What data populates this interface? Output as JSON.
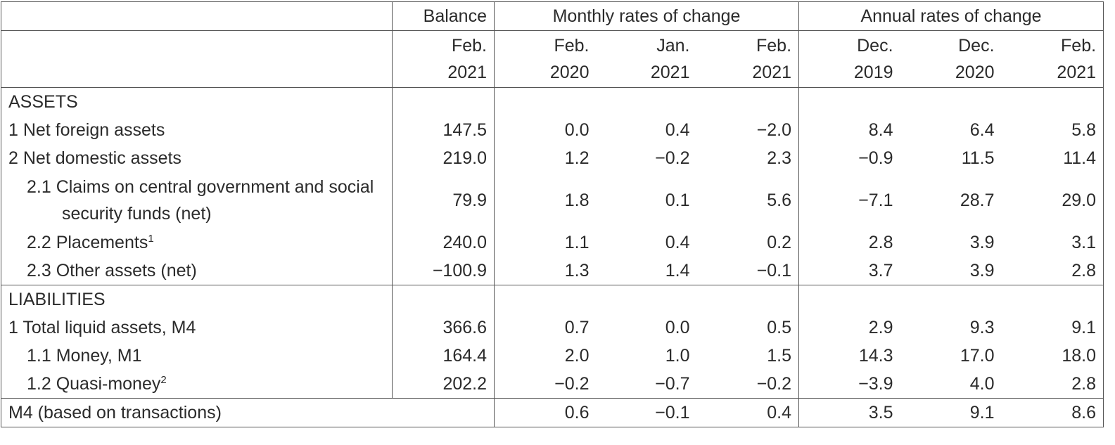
{
  "header": {
    "balance": "Balance",
    "monthly": "Monthly rates of change",
    "annual": "Annual rates of change",
    "periods": [
      {
        "m": "Feb.",
        "y": "2021"
      },
      {
        "m": "Feb.",
        "y": "2020"
      },
      {
        "m": "Jan.",
        "y": "2021"
      },
      {
        "m": "Feb.",
        "y": "2021"
      },
      {
        "m": "Dec.",
        "y": "2019"
      },
      {
        "m": "Dec.",
        "y": "2020"
      },
      {
        "m": "Feb.",
        "y": "2021"
      }
    ]
  },
  "assets": {
    "title": "ASSETS",
    "rows": [
      {
        "label": "1 Net foreign assets",
        "values": [
          "147.5",
          "0.0",
          "0.4",
          "−2.0",
          "8.4",
          "6.4",
          "5.8"
        ]
      },
      {
        "label": "2 Net domestic assets",
        "values": [
          "219.0",
          "1.2",
          "−0.2",
          "2.3",
          "−0.9",
          "11.5",
          "11.4"
        ]
      },
      {
        "label": "2.1 Claims on central government and social security funds (net)",
        "values": [
          "79.9",
          "1.8",
          "0.1",
          "5.6",
          "−7.1",
          "28.7",
          "29.0"
        ]
      },
      {
        "label": "2.2 Placements",
        "sup": "1",
        "values": [
          "240.0",
          "1.1",
          "0.4",
          "0.2",
          "2.8",
          "3.9",
          "3.1"
        ]
      },
      {
        "label": "2.3 Other assets (net)",
        "values": [
          "−100.9",
          "1.3",
          "1.4",
          "−0.1",
          "3.7",
          "3.9",
          "2.8"
        ]
      }
    ]
  },
  "liabilities": {
    "title": "LIABILITIES",
    "rows": [
      {
        "label": "1 Total liquid assets, M4",
        "values": [
          "366.6",
          "0.7",
          "0.0",
          "0.5",
          "2.9",
          "9.3",
          "9.1"
        ]
      },
      {
        "label": "1.1 Money, M1",
        "values": [
          "164.4",
          "2.0",
          "1.0",
          "1.5",
          "14.3",
          "17.0",
          "18.0"
        ]
      },
      {
        "label": "1.2 Quasi-money",
        "sup": "2",
        "values": [
          "202.2",
          "−0.2",
          "−0.7",
          "−0.2",
          "−3.9",
          "4.0",
          "2.8"
        ]
      }
    ]
  },
  "footer_row": {
    "label": "M4 (based on transactions)",
    "values": [
      "",
      "0.6",
      "−0.1",
      "0.4",
      "3.5",
      "9.1",
      "8.6"
    ]
  }
}
